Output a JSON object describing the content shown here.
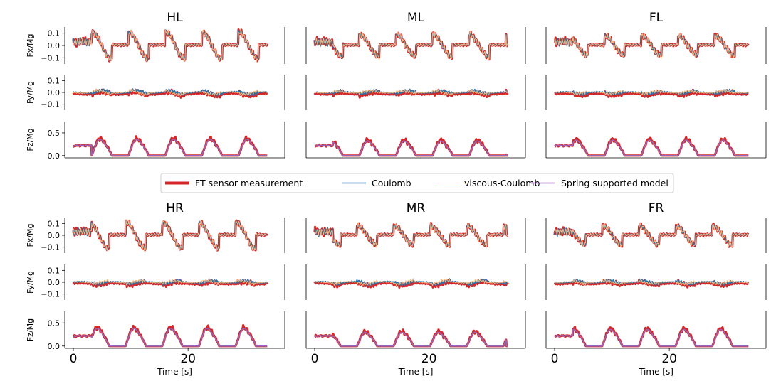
{
  "chart_data": {
    "type": "line",
    "title": "",
    "xlabel": "Time [s]",
    "time_range": [
      0,
      35
    ],
    "x_ticks": [
      0,
      20
    ],
    "legend": {
      "placement": "center",
      "entries": [
        {
          "name": "FT sensor measurement",
          "color": "#d62728"
        },
        {
          "name": "Coulomb",
          "color": "#1f77b4"
        },
        {
          "name": "viscous-Coulomb",
          "color": "#ffbb78"
        },
        {
          "name": "Spring supported model",
          "color": "#9467bd"
        }
      ]
    },
    "rows": [
      {
        "key": "Fx",
        "ylabel": "Fx/Mg",
        "ylim": [
          -0.15,
          0.15
        ],
        "ticks": [
          0.1,
          0.0,
          -0.1
        ],
        "tick_labels": [
          "0.1",
          "0.0",
          "−0.1"
        ],
        "series": [
          "FT sensor measurement",
          "Coulomb",
          "viscous-Coulomb"
        ]
      },
      {
        "key": "Fy",
        "ylabel": "Fy/Mg",
        "ylim": [
          -0.15,
          0.15
        ],
        "ticks": [
          0.1,
          0.0,
          -0.1
        ],
        "tick_labels": [
          "0.1",
          "0.0",
          "−0.1"
        ],
        "series": [
          "FT sensor measurement",
          "Coulomb",
          "viscous-Coulomb"
        ]
      },
      {
        "key": "Fz",
        "ylabel": "Fz/Mg",
        "ylim": [
          -0.05,
          0.75
        ],
        "ticks": [
          0.5,
          0.0
        ],
        "tick_labels": [
          "0.5",
          "0.0"
        ],
        "series": [
          "FT sensor measurement",
          "Spring supported model"
        ]
      }
    ],
    "groups": [
      {
        "key": "left",
        "legs": [
          {
            "title": "HL",
            "phase": 0.0,
            "fx_amp": 0.11,
            "fy_amp": 0.04,
            "fz_peak": 0.42,
            "x_label_shown": false
          },
          {
            "title": "ML",
            "phase": 1.8,
            "fx_amp": 0.09,
            "fy_amp": 0.03,
            "fz_peak": 0.38,
            "x_label_shown": false
          },
          {
            "title": "FL",
            "phase": 0.9,
            "fx_amp": 0.08,
            "fy_amp": 0.03,
            "fz_peak": 0.4,
            "x_label_shown": false
          }
        ]
      },
      {
        "key": "right",
        "legs": [
          {
            "title": "HR",
            "phase": 0.5,
            "fx_amp": 0.11,
            "fy_amp": 0.03,
            "fz_peak": 0.45,
            "x_label_shown": true
          },
          {
            "title": "MR",
            "phase": 2.2,
            "fx_amp": 0.08,
            "fy_amp": 0.04,
            "fz_peak": 0.35,
            "x_label_shown": true
          },
          {
            "title": "FR",
            "phase": 1.3,
            "fx_amp": 0.08,
            "fy_amp": 0.03,
            "fz_peak": 0.42,
            "x_label_shown": true
          }
        ]
      }
    ],
    "gait": {
      "period_s": 6.4,
      "start_s": 3.2,
      "end_s": 33.5,
      "stance_fraction": 0.55
    }
  }
}
